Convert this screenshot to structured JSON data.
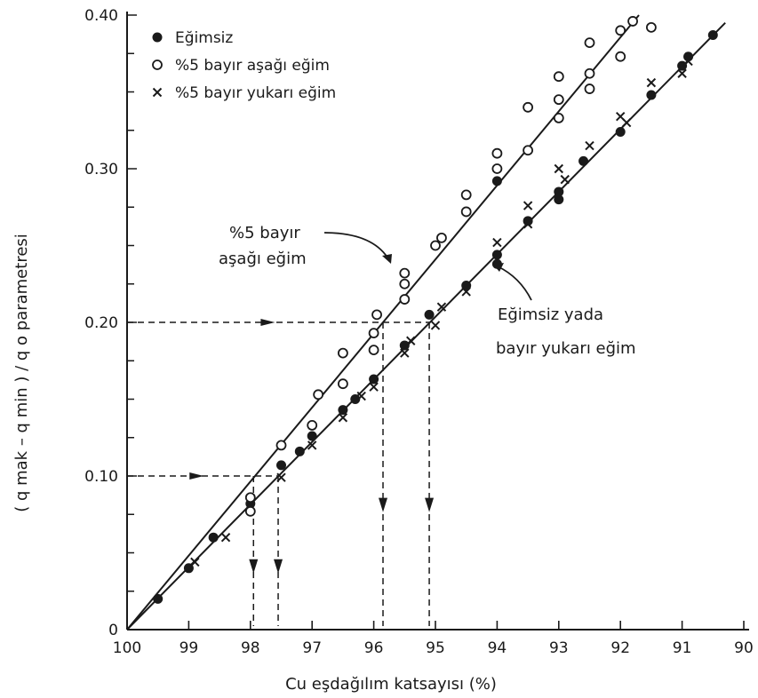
{
  "chart_data": {
    "type": "scatter",
    "xlabel": "Cu eşdağılım katsayısı (%)",
    "ylabel": "( q mak – q min ) / q o parametresi",
    "xlim": [
      100,
      90
    ],
    "ylim": [
      0,
      0.4
    ],
    "x_ticks": [
      100,
      99,
      98,
      97,
      96,
      95,
      94,
      93,
      92,
      91,
      90
    ],
    "x_tick_labels": [
      "100",
      "99",
      "98",
      "97",
      "96",
      "95",
      "94",
      "93",
      "92",
      "91",
      "90"
    ],
    "y_ticks": [
      0,
      0.1,
      0.2,
      0.3,
      0.4
    ],
    "y_tick_labels": [
      "0",
      "0.10",
      "0.20",
      "0.30",
      "0.40"
    ],
    "legend_position": "top-left",
    "legend": [
      {
        "marker": "filled-circle",
        "label": "Eğimsiz"
      },
      {
        "marker": "open-circle",
        "label": "%5 bayır aşağı eğim"
      },
      {
        "marker": "cross",
        "label": "%5 bayır yukarı eğim"
      }
    ],
    "series": [
      {
        "name": "Eğimsiz",
        "marker": "filled-circle",
        "points": [
          [
            99.5,
            0.02
          ],
          [
            99.0,
            0.04
          ],
          [
            98.6,
            0.06
          ],
          [
            98.0,
            0.082
          ],
          [
            97.5,
            0.107
          ],
          [
            97.2,
            0.116
          ],
          [
            97.0,
            0.126
          ],
          [
            96.5,
            0.143
          ],
          [
            96.3,
            0.15
          ],
          [
            96.0,
            0.163
          ],
          [
            95.5,
            0.185
          ],
          [
            95.1,
            0.205
          ],
          [
            94.5,
            0.224
          ],
          [
            94.0,
            0.238
          ],
          [
            94.0,
            0.244
          ],
          [
            93.5,
            0.266
          ],
          [
            93.0,
            0.28
          ],
          [
            93.0,
            0.285
          ],
          [
            92.6,
            0.305
          ],
          [
            92.0,
            0.324
          ],
          [
            91.5,
            0.348
          ],
          [
            91.0,
            0.367
          ],
          [
            90.9,
            0.373
          ],
          [
            90.5,
            0.387
          ],
          [
            94.0,
            0.292
          ]
        ]
      },
      {
        "name": "%5 bayır aşağı eğim",
        "marker": "open-circle",
        "points": [
          [
            98.0,
            0.077
          ],
          [
            98.0,
            0.086
          ],
          [
            97.5,
            0.12
          ],
          [
            97.0,
            0.133
          ],
          [
            96.9,
            0.153
          ],
          [
            96.5,
            0.18
          ],
          [
            96.5,
            0.16
          ],
          [
            96.0,
            0.182
          ],
          [
            96.0,
            0.193
          ],
          [
            95.95,
            0.205
          ],
          [
            95.5,
            0.215
          ],
          [
            95.5,
            0.225
          ],
          [
            95.5,
            0.232
          ],
          [
            95.0,
            0.25
          ],
          [
            94.9,
            0.255
          ],
          [
            94.5,
            0.272
          ],
          [
            94.5,
            0.283
          ],
          [
            94.0,
            0.3
          ],
          [
            94.0,
            0.31
          ],
          [
            93.5,
            0.312
          ],
          [
            93.5,
            0.34
          ],
          [
            93.0,
            0.333
          ],
          [
            93.0,
            0.345
          ],
          [
            93.0,
            0.36
          ],
          [
            92.5,
            0.352
          ],
          [
            92.5,
            0.362
          ],
          [
            92.5,
            0.382
          ],
          [
            92.0,
            0.373
          ],
          [
            92.0,
            0.39
          ],
          [
            91.8,
            0.396
          ],
          [
            91.5,
            0.392
          ]
        ]
      },
      {
        "name": "%5 bayır yukarı eğim",
        "marker": "cross",
        "points": [
          [
            98.9,
            0.044
          ],
          [
            98.4,
            0.06
          ],
          [
            97.5,
            0.099
          ],
          [
            97.0,
            0.12
          ],
          [
            96.5,
            0.138
          ],
          [
            96.2,
            0.152
          ],
          [
            96.0,
            0.158
          ],
          [
            95.5,
            0.18
          ],
          [
            95.4,
            0.188
          ],
          [
            95.0,
            0.198
          ],
          [
            94.9,
            0.21
          ],
          [
            94.5,
            0.22
          ],
          [
            94.0,
            0.252
          ],
          [
            93.5,
            0.264
          ],
          [
            93.5,
            0.276
          ],
          [
            93.0,
            0.3
          ],
          [
            92.9,
            0.293
          ],
          [
            92.5,
            0.315
          ],
          [
            92.0,
            0.334
          ],
          [
            91.9,
            0.33
          ],
          [
            91.5,
            0.356
          ],
          [
            91.0,
            0.362
          ],
          [
            90.9,
            0.37
          ]
        ]
      }
    ],
    "fit_lines": [
      {
        "label": "%5 bayır aşağı eğim",
        "from": [
          100,
          0
        ],
        "to": [
          91.7,
          0.4
        ]
      },
      {
        "label": "Eğimsiz yada bayır yukarı eğim",
        "from": [
          100,
          0
        ],
        "to": [
          90.3,
          0.395
        ]
      }
    ],
    "guide_lines": [
      {
        "y": 0.1,
        "x_hits": [
          97.95,
          97.55
        ]
      },
      {
        "y": 0.2,
        "x_hits": [
          95.85,
          95.1
        ]
      }
    ],
    "annotations": [
      {
        "lines": [
          "%5 bayır",
          "aşağı eğim"
        ]
      },
      {
        "lines": [
          "Eğimsiz yada",
          "bayır yukarı eğim"
        ]
      }
    ]
  }
}
